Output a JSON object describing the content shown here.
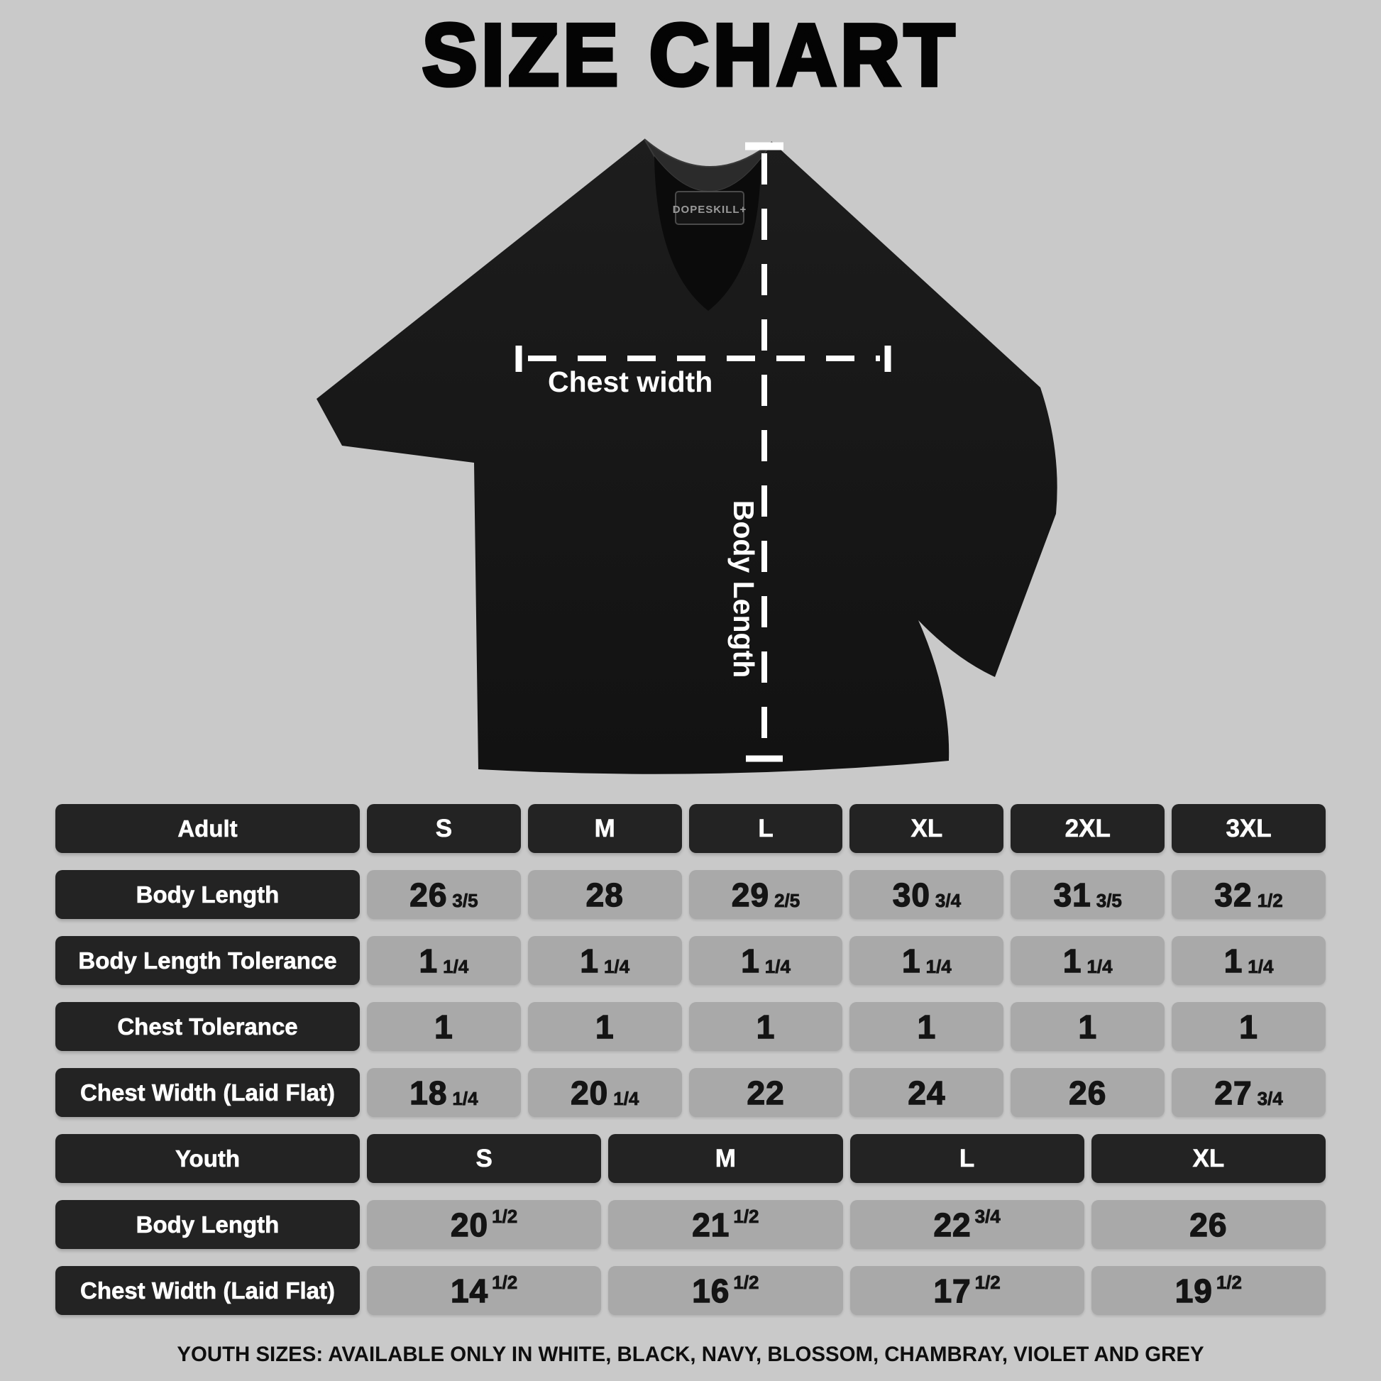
{
  "title": "SIZE CHART",
  "shirt": {
    "chest_label": "Chest width",
    "body_label": "Body Length",
    "tag_text": "DOPESKILL+"
  },
  "tables": {
    "adult": {
      "header_label": "Adult",
      "sizes": [
        "S",
        "M",
        "L",
        "XL",
        "2XL",
        "3XL"
      ],
      "fraction_style": "sub",
      "rows": [
        {
          "label": "Body Length",
          "values": [
            [
              "26",
              "3/5"
            ],
            [
              "28",
              ""
            ],
            [
              "29",
              "2/5"
            ],
            [
              "30",
              "3/4"
            ],
            [
              "31",
              "3/5"
            ],
            [
              "32",
              "1/2"
            ]
          ]
        },
        {
          "label": "Body Length Tolerance",
          "values": [
            [
              "1",
              "1/4"
            ],
            [
              "1",
              "1/4"
            ],
            [
              "1",
              "1/4"
            ],
            [
              "1",
              "1/4"
            ],
            [
              "1",
              "1/4"
            ],
            [
              "1",
              "1/4"
            ]
          ]
        },
        {
          "label": "Chest Tolerance",
          "values": [
            [
              "1",
              ""
            ],
            [
              "1",
              ""
            ],
            [
              "1",
              ""
            ],
            [
              "1",
              ""
            ],
            [
              "1",
              ""
            ],
            [
              "1",
              ""
            ]
          ]
        },
        {
          "label": "Chest Width (Laid Flat)",
          "values": [
            [
              "18",
              "1/4"
            ],
            [
              "20",
              "1/4"
            ],
            [
              "22",
              ""
            ],
            [
              "24",
              ""
            ],
            [
              "26",
              ""
            ],
            [
              "27",
              "3/4"
            ]
          ]
        }
      ]
    },
    "youth": {
      "header_label": "Youth",
      "sizes": [
        "S",
        "M",
        "L",
        "XL"
      ],
      "fraction_style": "sup",
      "rows": [
        {
          "label": "Body Length",
          "values": [
            [
              "20",
              "1/2"
            ],
            [
              "21",
              "1/2"
            ],
            [
              "22",
              "3/4"
            ],
            [
              "26",
              ""
            ]
          ]
        },
        {
          "label": "Chest Width (Laid Flat)",
          "values": [
            [
              "14",
              "1/2"
            ],
            [
              "16",
              "1/2"
            ],
            [
              "17",
              "1/2"
            ],
            [
              "19",
              "1/2"
            ]
          ]
        }
      ]
    }
  },
  "footer": "YOUTH SIZES: AVAILABLE ONLY IN WHITE, BLACK, NAVY, BLOSSOM, CHAMBRAY, VIOLET AND GREY",
  "colors": {
    "background": "#c9c9c9",
    "header-cell": "#232323",
    "value-cell": "#a9a9a9",
    "header-text": "#ffffff",
    "value-text": "#141414",
    "shirt": "#171717",
    "measure-line": "#ffffff"
  }
}
